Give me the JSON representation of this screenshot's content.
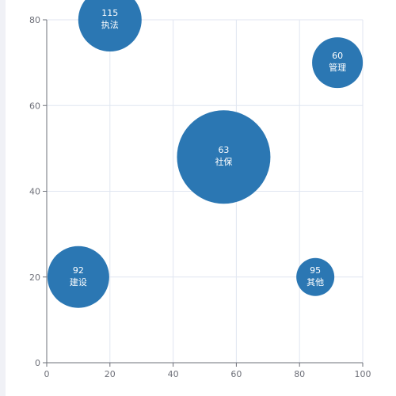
{
  "chart_data": {
    "type": "scatter",
    "subtype": "bubble",
    "title": "",
    "xlabel": "",
    "ylabel": "",
    "xlim": [
      0,
      100
    ],
    "ylim": [
      0,
      80
    ],
    "xticks": [
      0,
      20,
      40,
      60,
      80,
      100
    ],
    "yticks": [
      0,
      20,
      40,
      60,
      80
    ],
    "grid": true,
    "legend": "none",
    "bubble_color": "#2b77b3",
    "points": [
      {
        "x": 20,
        "y": 80,
        "value": "115",
        "label": "执法"
      },
      {
        "x": 92,
        "y": 70,
        "value": "60",
        "label": "管理"
      },
      {
        "x": 56,
        "y": 48,
        "value": "63",
        "label": "社保"
      },
      {
        "x": 10,
        "y": 20,
        "value": "92",
        "label": "建设"
      },
      {
        "x": 85,
        "y": 20,
        "value": "95",
        "label": "其他"
      }
    ]
  }
}
